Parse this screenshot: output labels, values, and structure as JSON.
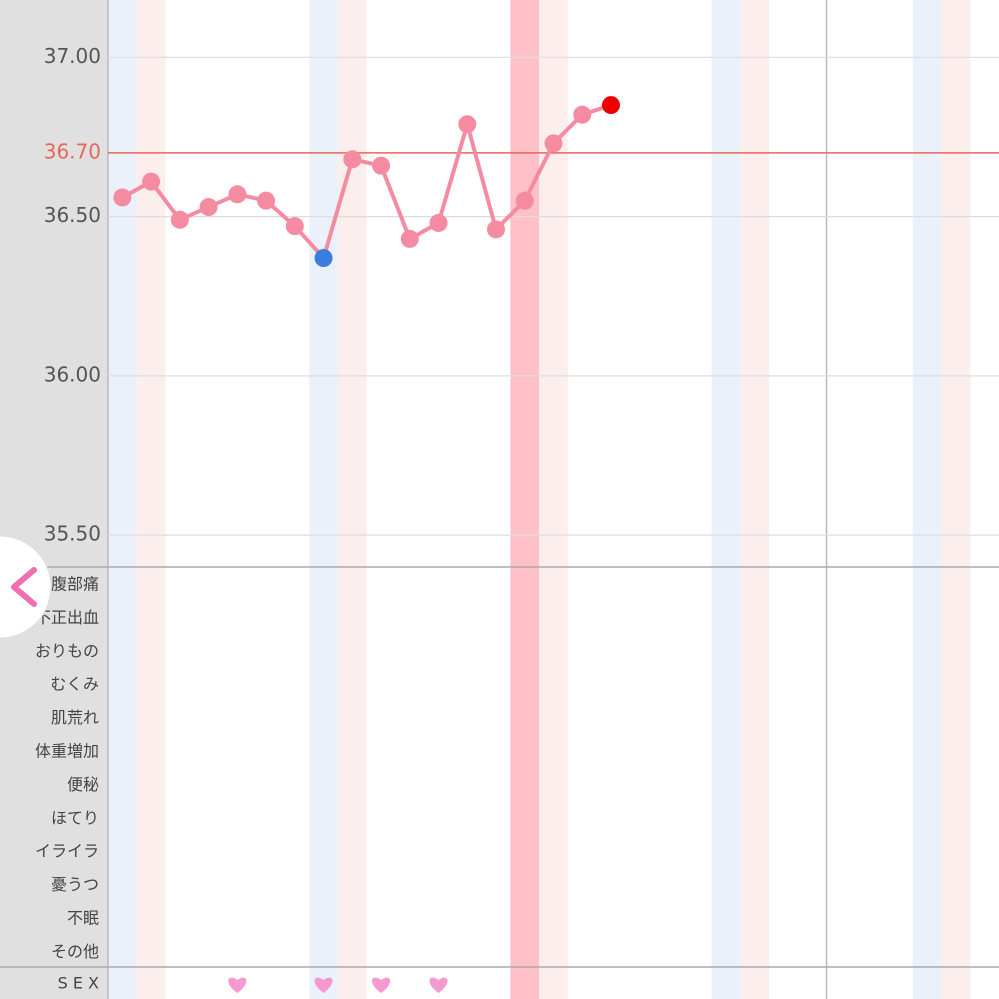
{
  "chart_data": {
    "type": "line",
    "categories": [
      null,
      null,
      null,
      null,
      null,
      null,
      null,
      null,
      null,
      null,
      null,
      null,
      null,
      null,
      null,
      null,
      null,
      null,
      null,
      null,
      null,
      null,
      null,
      null,
      null,
      null,
      null,
      null,
      null,
      null,
      null
    ],
    "series": [
      {
        "color": "#f58ba1",
        "values": [
          36.56,
          36.61,
          36.49,
          36.53,
          36.57,
          36.55,
          36.47,
          36.37,
          36.68,
          36.66,
          36.43,
          36.48,
          36.79,
          36.46,
          36.55,
          36.73,
          36.82,
          36.85,
          null,
          null,
          null,
          null,
          null,
          null,
          null,
          null,
          null,
          null,
          null,
          null,
          null
        ],
        "point_colors": [
          "#f58ba1",
          "#f58ba1",
          "#f58ba1",
          "#f58ba1",
          "#f58ba1",
          "#f58ba1",
          "#f58ba1",
          "#3b7ddd",
          "#f58ba1",
          "#f58ba1",
          "#f58ba1",
          "#f58ba1",
          "#f58ba1",
          "#f58ba1",
          "#f58ba1",
          "#f58ba1",
          "#f58ba1",
          "#ee0000"
        ]
      }
    ],
    "ylim": [
      35.4,
      37.18
    ],
    "yticks": [
      {
        "value": 37.0,
        "label": "37.00"
      },
      {
        "value": 36.7,
        "label": "36.70",
        "color": "#e8665a"
      },
      {
        "value": 36.5,
        "label": "36.50"
      },
      {
        "value": 36.0,
        "label": "36.00"
      },
      {
        "value": 35.5,
        "label": "35.50"
      }
    ],
    "grid": true,
    "bands": [
      {
        "index": 0,
        "color": "#ebf1fb"
      },
      {
        "index": 1,
        "color": "#fdeeee"
      },
      {
        "index": 7,
        "color": "#ebf1fb"
      },
      {
        "index": 8,
        "color": "#fdeeee"
      },
      {
        "index": 14,
        "color": "#ffc0c8"
      },
      {
        "index": 15,
        "color": "#fdeeee"
      },
      {
        "index": 21,
        "color": "#ebf1fb"
      },
      {
        "index": 22,
        "color": "#fdeeee"
      },
      {
        "index": 28,
        "color": "#ebf1fb"
      },
      {
        "index": 29,
        "color": "#fdeeee"
      }
    ],
    "divider_index": 25,
    "symptoms": [
      "下腹部痛",
      "不正出血",
      "おりもの",
      "むくみ",
      "肌荒れ",
      "体重増加",
      "便秘",
      "ほてり",
      "イライラ",
      "憂うつ",
      "不眠",
      "その他"
    ],
    "sex": {
      "label": "S E X",
      "days": [
        4,
        7,
        9,
        11
      ],
      "color": "#f59ad0"
    }
  }
}
